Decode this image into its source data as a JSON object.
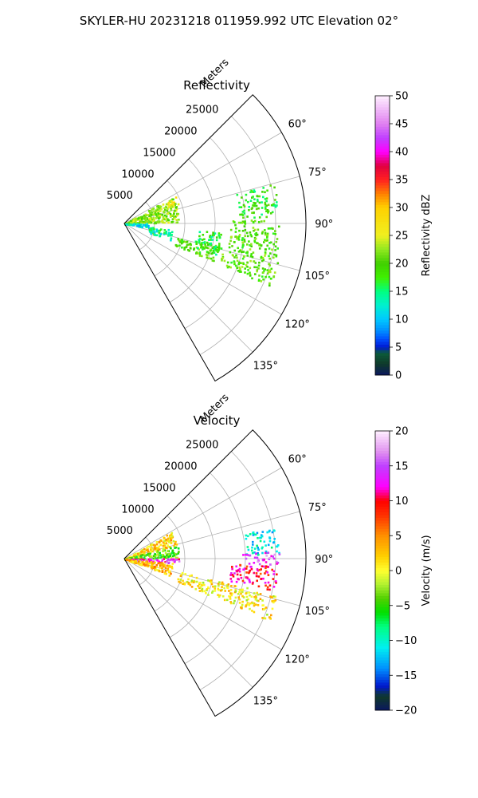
{
  "title": "SKYLER-HU  20231218  011959.992 UTC Elevation 02°",
  "chart_data": [
    {
      "type": "heatmap",
      "projection": "polar-sector",
      "title": "Reflectivity",
      "range_label": "Meters",
      "azimuth_range_deg": [
        45,
        150
      ],
      "range_max_m": 30000,
      "range_ticks": [
        5000,
        10000,
        15000,
        20000,
        25000
      ],
      "range_tick_labels": [
        "5000",
        "10000",
        "15000",
        "20000",
        "25000"
      ],
      "azimuth_ticks": [
        60,
        75,
        90,
        105,
        120,
        135
      ],
      "azimuth_tick_labels": [
        "60°",
        "75°",
        "90°",
        "105°",
        "120°",
        "135°"
      ],
      "grid": true,
      "colorbar": {
        "label": "Reflectivity dBZ",
        "vmin": 0,
        "vmax": 50,
        "ticks": [
          0,
          5,
          10,
          15,
          20,
          25,
          30,
          35,
          40,
          45,
          50
        ],
        "tick_labels": [
          "0",
          "5",
          "10",
          "15",
          "20",
          "25",
          "30",
          "35",
          "40",
          "45",
          "50"
        ]
      },
      "echo_regions": [
        {
          "az": [
            60,
            88
          ],
          "range": [
            0,
            9000
          ],
          "value": 22
        },
        {
          "az": [
            88,
            100
          ],
          "range": [
            0,
            4000
          ],
          "value": 12
        },
        {
          "az": [
            97,
            110
          ],
          "range": [
            4000,
            8000
          ],
          "value": 14
        },
        {
          "az": [
            62,
            70
          ],
          "range": [
            7000,
            9500
          ],
          "value": 26
        },
        {
          "az": [
            75,
            87
          ],
          "range": [
            19000,
            25500
          ],
          "value": 18
        },
        {
          "az": [
            88,
            103
          ],
          "range": [
            17500,
            25500
          ],
          "value": 20
        },
        {
          "az": [
            103,
            113
          ],
          "range": [
            9000,
            26000
          ],
          "value": 20
        },
        {
          "az": [
            95,
            110
          ],
          "range": [
            12000,
            16000
          ],
          "value": 17
        }
      ]
    },
    {
      "type": "heatmap",
      "projection": "polar-sector",
      "title": "Velocity",
      "range_label": "Meters",
      "azimuth_range_deg": [
        45,
        150
      ],
      "range_max_m": 30000,
      "range_ticks": [
        5000,
        10000,
        15000,
        20000,
        25000
      ],
      "range_tick_labels": [
        "5000",
        "10000",
        "15000",
        "20000",
        "25000"
      ],
      "azimuth_ticks": [
        60,
        75,
        90,
        105,
        120,
        135
      ],
      "azimuth_tick_labels": [
        "60°",
        "75°",
        "90°",
        "105°",
        "120°",
        "135°"
      ],
      "grid": true,
      "colorbar": {
        "label": "Velocity (m/s)",
        "vmin": -20,
        "vmax": 20,
        "ticks": [
          -20,
          -15,
          -10,
          -5,
          0,
          5,
          10,
          15,
          20
        ],
        "tick_labels": [
          "−20",
          "−15",
          "−10",
          "−5",
          "0",
          "5",
          "10",
          "15",
          "20"
        ]
      },
      "echo_regions": [
        {
          "az": [
            60,
            75
          ],
          "range": [
            0,
            9000
          ],
          "value": 2
        },
        {
          "az": [
            75,
            89
          ],
          "range": [
            0,
            9000
          ],
          "value": -4
        },
        {
          "az": [
            89,
            95
          ],
          "range": [
            0,
            9000
          ],
          "value": 14
        },
        {
          "az": [
            95,
            110
          ],
          "range": [
            0,
            8000
          ],
          "value": 3
        },
        {
          "az": [
            78,
            88
          ],
          "range": [
            20000,
            25500
          ],
          "value": -11
        },
        {
          "az": [
            87,
            92
          ],
          "range": [
            19000,
            25500
          ],
          "value": 15
        },
        {
          "az": [
            92,
            102
          ],
          "range": [
            17500,
            25500
          ],
          "value": 10
        },
        {
          "az": [
            103,
            113
          ],
          "range": [
            9000,
            26000
          ],
          "value": 1
        }
      ]
    }
  ]
}
